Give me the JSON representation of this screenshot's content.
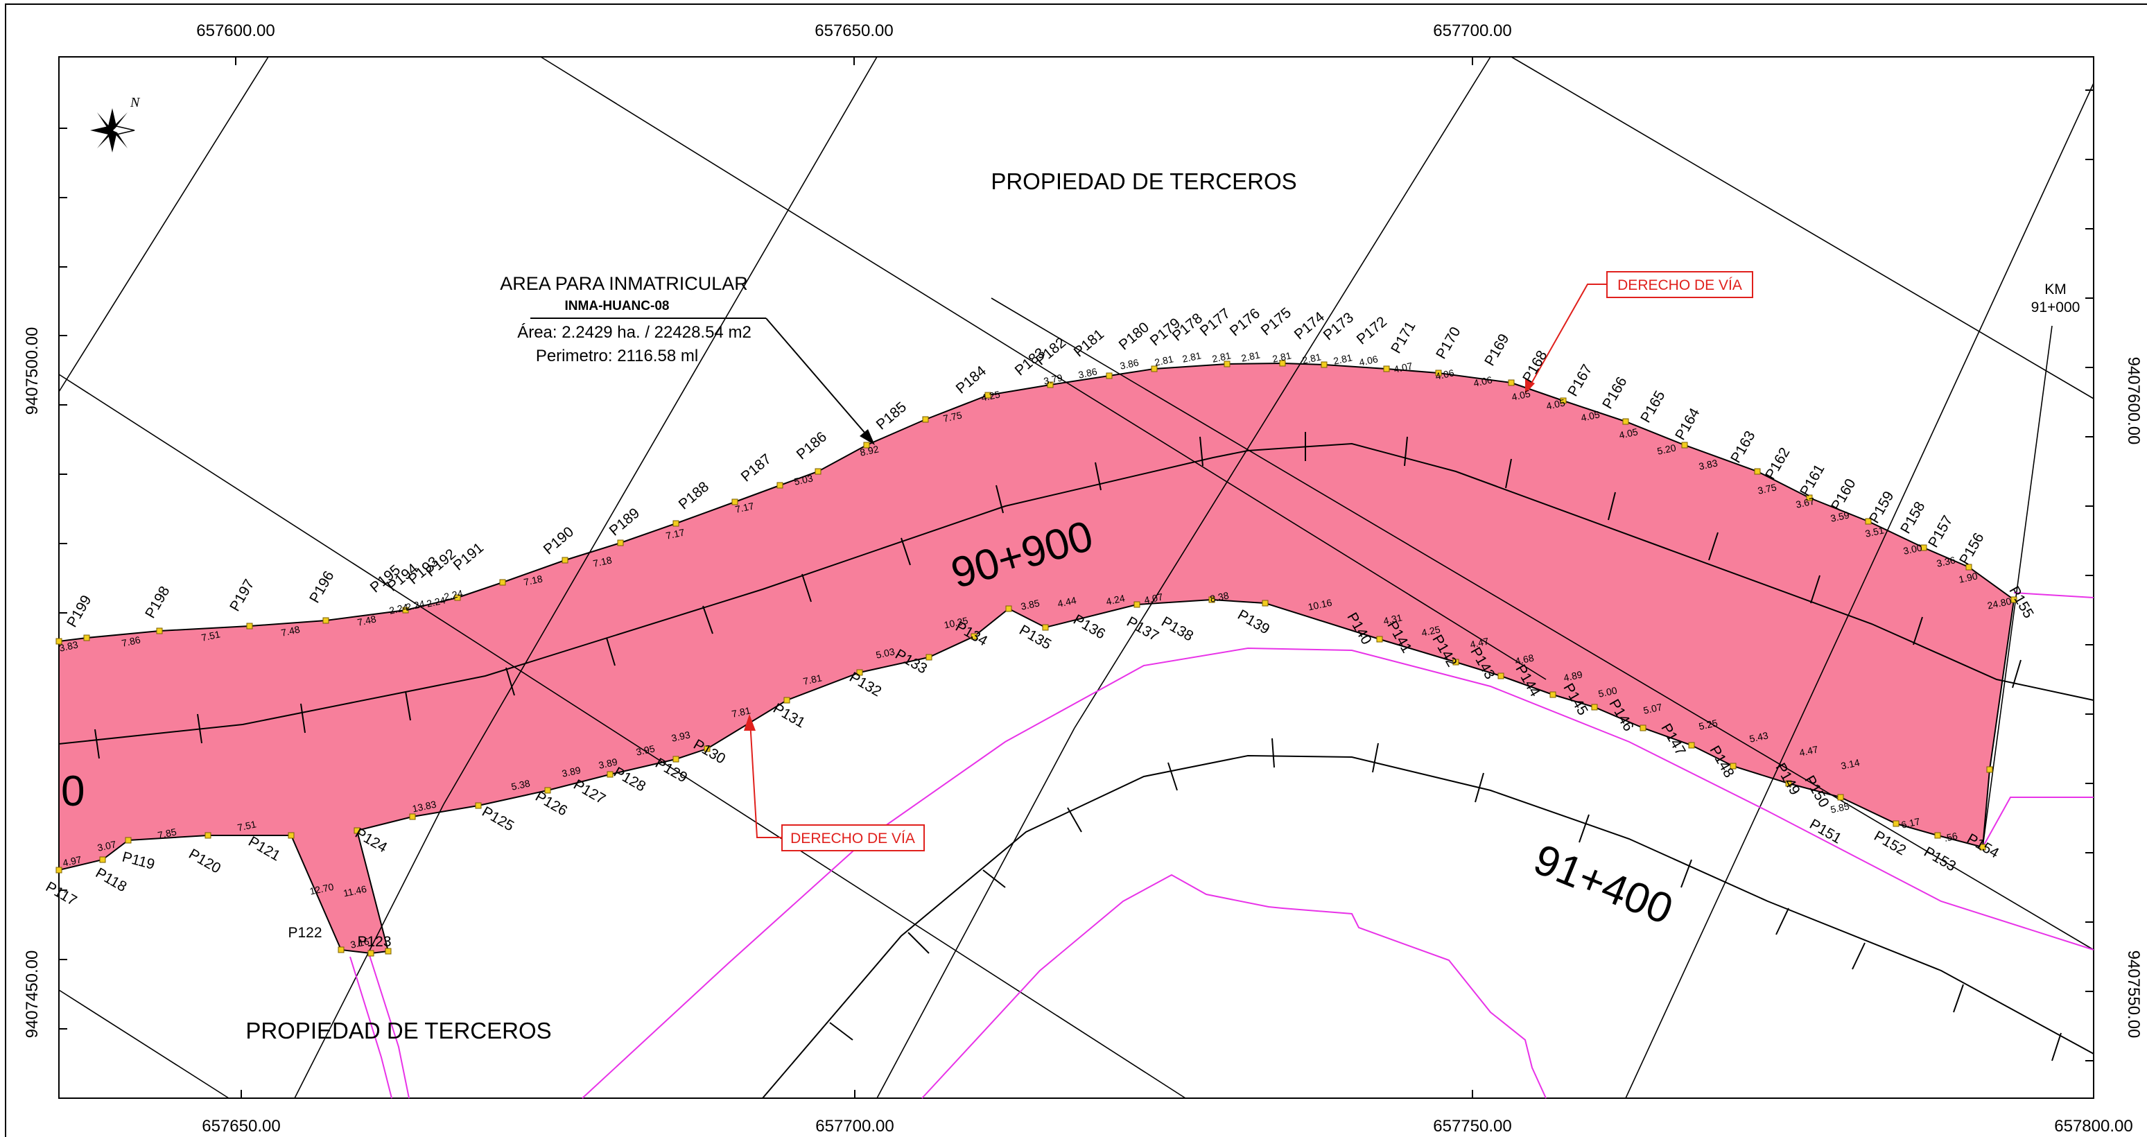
{
  "grid": {
    "top_x": [
      "657600.00",
      "657650.00",
      "657700.00"
    ],
    "bottom_x": [
      "657650.00",
      "657700.00",
      "657750.00",
      "657800.00"
    ],
    "left_y": [
      "9407500.00",
      "9407450.00"
    ],
    "right_y": [
      "9407600.00",
      "9407550.00"
    ]
  },
  "labels": {
    "third_party_top": "PROPIEDAD DE TERCEROS",
    "third_party_bottom": "PROPIEDAD DE TERCEROS",
    "area_title": "AREA PARA INMATRICULAR",
    "area_code": "INMA-HUANC-08",
    "area_value": "Área: 2.2429 ha. / 22428.54 m2",
    "perimeter": "Perimetro: 2116.58 ml",
    "row_top": "DERECHO DE VÍA",
    "row_bottom": "DERECHO DE VÍA",
    "km_title": "KM",
    "km_value": "91+000",
    "station_main": "90+900",
    "station_second": "91+400",
    "station_partial": "0"
  },
  "colors": {
    "parcel_fill": "#f77f9b",
    "right_of_way": "#e0201c",
    "boundary_magenta": "#e833e8"
  },
  "upper_points": [
    "P199",
    "P198",
    "P197",
    "P196",
    "P195",
    "P194",
    "P193",
    "P192",
    "P191",
    "P190",
    "P189",
    "P188",
    "P187",
    "P186",
    "P185",
    "P184",
    "P183",
    "P182",
    "P181",
    "P180",
    "P179",
    "P178",
    "P177",
    "P176",
    "P175",
    "P174",
    "P173",
    "P172",
    "P171",
    "P170",
    "P169",
    "P168",
    "P167",
    "P166",
    "P165",
    "P164",
    "P163",
    "P162",
    "P161",
    "P160",
    "P159",
    "P158",
    "P157",
    "P156",
    "P155"
  ],
  "lower_points": [
    "P117",
    "P118",
    "P119",
    "P120",
    "P121",
    "P122",
    "P123",
    "P124",
    "P125",
    "P126",
    "P127",
    "P128",
    "P129",
    "P130",
    "P131",
    "P132",
    "P133",
    "P134",
    "P135",
    "P136",
    "P137",
    "P138",
    "P139",
    "P140",
    "P141",
    "P142",
    "P143",
    "P144",
    "P145",
    "P146",
    "P147",
    "P148",
    "P149",
    "P150",
    "P151",
    "P152",
    "P153",
    "P154"
  ],
  "upper_distances": [
    "3.83",
    "7.86",
    "7.51",
    "7.48",
    "7.48",
    "2.24",
    "2.24",
    "2.24",
    "2.24",
    "7.18",
    "7.18",
    "7.17",
    "7.17",
    "5.03",
    "8.92",
    "7.75",
    "4.25",
    "3.79",
    "3.86",
    "3.86",
    "2.81",
    "2.81",
    "2.81",
    "2.81",
    "2.81",
    "2.81",
    "2.81",
    "4.06",
    "4.07",
    "4.06",
    "4.06",
    "4.05",
    "4.05",
    "4.05",
    "4.05",
    "5.20",
    "3.83",
    "3.75",
    "3.67",
    "3.59",
    "3.51",
    "3.00",
    "3.36",
    "1.90",
    "24.80"
  ],
  "lower_distances": [
    "4.97",
    "3.07",
    "7.85",
    "7.51",
    "12.70",
    "3.16",
    "11.46",
    "13.83",
    "5.38",
    "3.89",
    "3.89",
    "3.95",
    "3.93",
    "7.81",
    "7.81",
    "5.03",
    "10.35",
    "3.85",
    "4.44",
    "4.24",
    "4.07",
    "8.38",
    "10.16",
    "4.31",
    "4.25",
    "4.47",
    "4.68",
    "4.89",
    "5.00",
    "5.07",
    "5.25",
    "5.43",
    "4.47",
    "3.14",
    "5.85",
    "6.17",
    ".56"
  ]
}
